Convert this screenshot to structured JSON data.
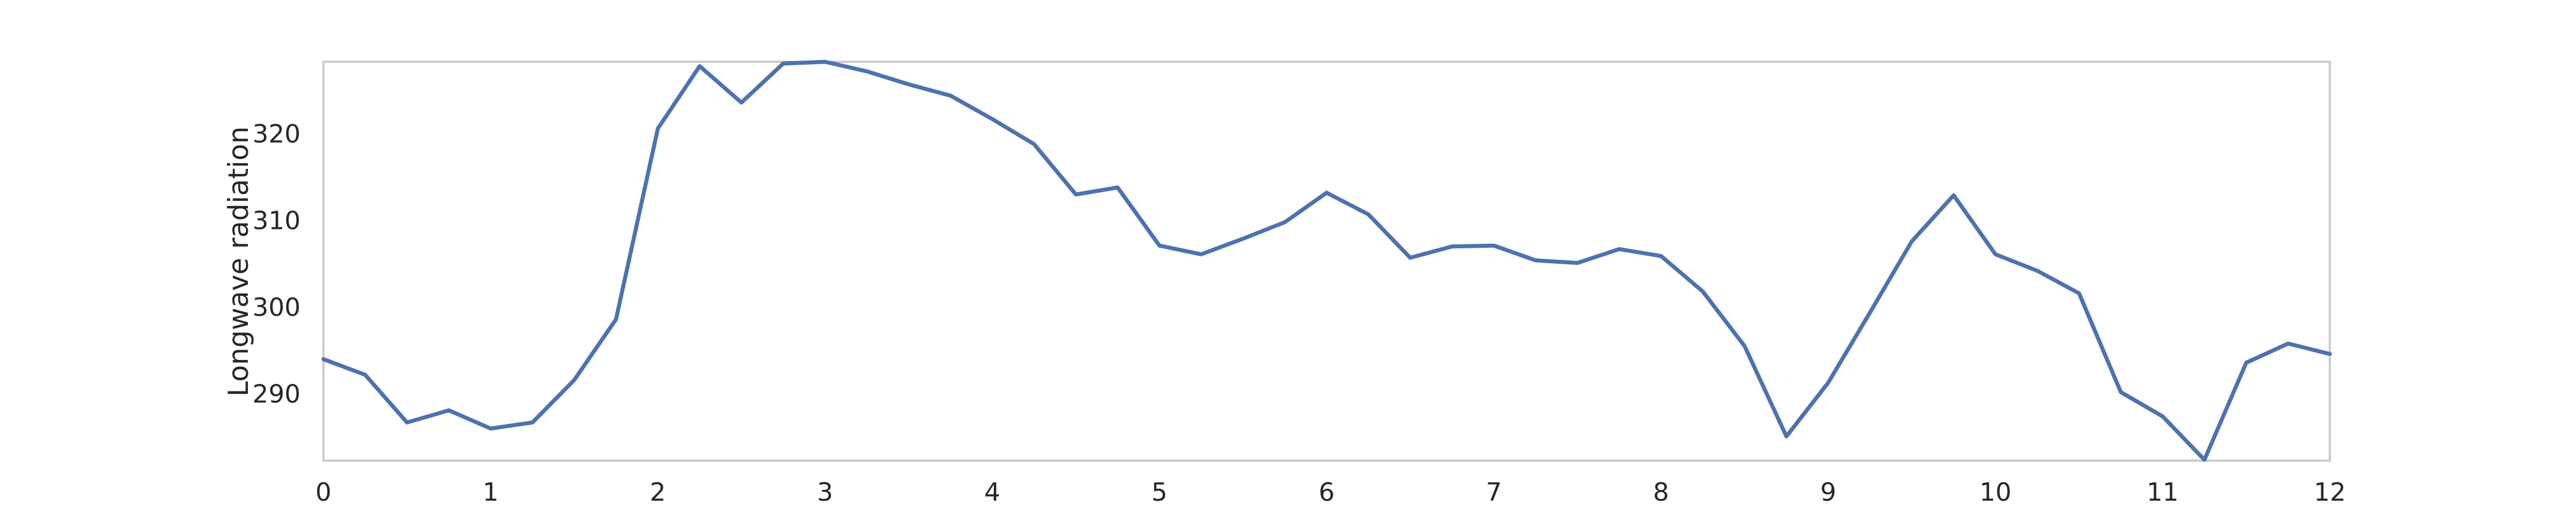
{
  "chart_data": {
    "type": "line",
    "title": "",
    "xlabel": "",
    "ylabel": "Longwave radiation",
    "xlim": [
      0,
      12
    ],
    "ylim": [
      282.5,
      328.5
    ],
    "grid": false,
    "legend": "none",
    "x_ticks": [
      "0",
      "1",
      "2",
      "3",
      "4",
      "5",
      "6",
      "7",
      "8",
      "9",
      "10",
      "11",
      "12"
    ],
    "y_ticks": [
      "290",
      "300",
      "310",
      "320"
    ],
    "line_color": "#4c72b0",
    "frame_color": "#cccccc",
    "series": [
      {
        "x": [
          0,
          0.25,
          0.5,
          0.75,
          1,
          1.25,
          1.5,
          1.75,
          2,
          2.25,
          2.5,
          2.75,
          3,
          3.25,
          3.5,
          3.75,
          4,
          4.25,
          4.5,
          4.75,
          5,
          5.25,
          5.5,
          5.75,
          6,
          6.25,
          6.5,
          6.75,
          7,
          7.25,
          7.5,
          7.75,
          8,
          8.25,
          8.5,
          8.75,
          9,
          9.25,
          9.5,
          9.75,
          10,
          10.25,
          10.5,
          10.75,
          11,
          11.25,
          11.5,
          11.75,
          12
        ],
        "y": [
          294.2,
          292.4,
          286.9,
          288.3,
          286.2,
          286.9,
          291.8,
          298.8,
          320.8,
          328.0,
          323.8,
          328.3,
          328.5,
          327.4,
          325.9,
          324.6,
          321.9,
          319.0,
          313.2,
          314.0,
          307.3,
          306.3,
          308.1,
          310.0,
          313.4,
          310.9,
          305.9,
          307.2,
          307.3,
          305.6,
          305.3,
          306.9,
          306.1,
          302.0,
          295.7,
          285.3,
          291.5,
          299.6,
          307.8,
          313.1,
          306.3,
          304.4,
          301.8,
          290.4,
          287.6,
          282.6,
          293.8,
          296.0,
          294.8
        ]
      }
    ]
  }
}
